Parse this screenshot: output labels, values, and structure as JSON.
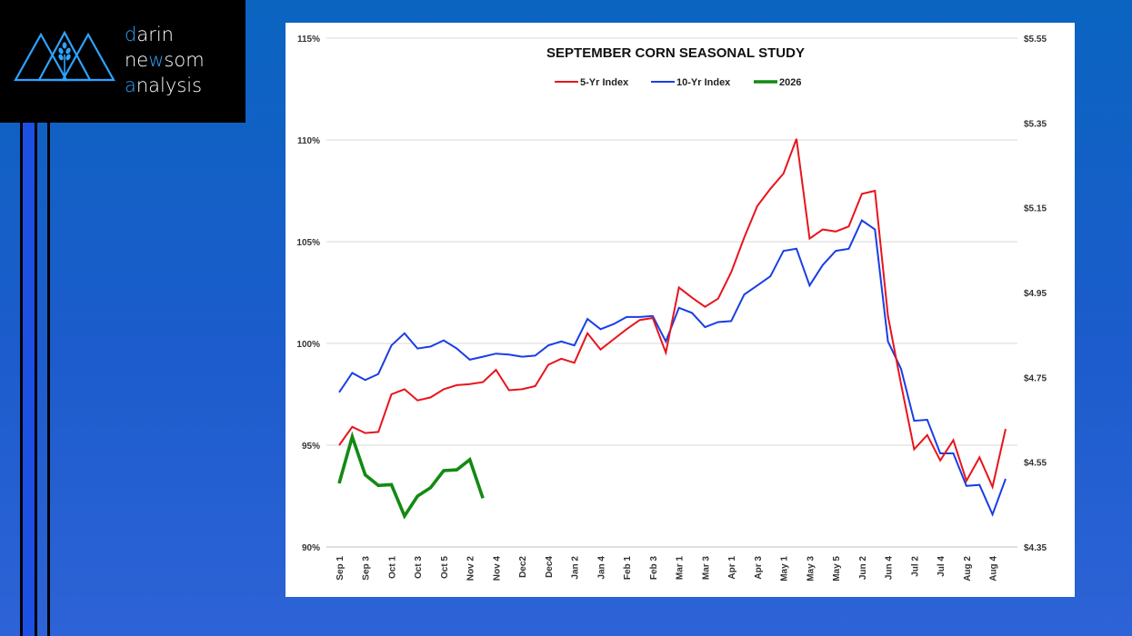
{
  "logo": {
    "line1_first": "d",
    "line1_rest": "arin",
    "line2_a": "ne",
    "line2_b": "w",
    "line2_c": "som",
    "line3_first": "a",
    "line3_rest": "nalysis"
  },
  "colors": {
    "five_yr": "#e8141c",
    "ten_yr": "#1a3ee6",
    "current": "#138a12",
    "logo_accent": "#2ea3ff"
  },
  "chart_data": {
    "type": "line",
    "title": "SEPTEMBER CORN SEASONAL STUDY",
    "legend_position": "top-center",
    "grid": true,
    "y_left": {
      "ticks": [
        "90%",
        "95%",
        "100%",
        "105%",
        "110%",
        "115%"
      ],
      "range": [
        90,
        115
      ]
    },
    "y_right": {
      "ticks": [
        "$4.35",
        "$4.55",
        "$4.75",
        "$4.95",
        "$5.15",
        "$5.35",
        "$5.55"
      ],
      "range": [
        4.35,
        5.55
      ]
    },
    "x_tick_labels": [
      "Sep 1",
      "Sep 3",
      "Oct 1",
      "Oct 3",
      "Oct 5",
      "Nov 2",
      "Nov 4",
      "Dec2",
      "Dec4",
      "Jan 2",
      "Jan 4",
      "Feb 1",
      "Feb 3",
      "Mar 1",
      "Mar 3",
      "Apr 1",
      "Apr 3",
      "May 1",
      "May 3",
      "May 5",
      "Jun 2",
      "Jun 4",
      "Jul 2",
      "Jul 4",
      "Aug 2",
      "Aug 4"
    ],
    "series": [
      {
        "name": "5-Yr Index",
        "axis": "left",
        "values": [
          95.0,
          95.9,
          95.6,
          95.65,
          97.5,
          97.75,
          97.2,
          97.35,
          97.75,
          97.95,
          98.0,
          98.1,
          98.7,
          97.7,
          97.75,
          97.9,
          98.95,
          99.25,
          99.05,
          100.5,
          99.7,
          100.2,
          100.7,
          101.15,
          101.25,
          99.55,
          102.75,
          102.25,
          101.8,
          102.2,
          103.5,
          105.2,
          106.75,
          107.6,
          108.35,
          110.05,
          105.15,
          105.6,
          105.5,
          105.75,
          107.35,
          107.5,
          101.35,
          98.0,
          94.8,
          95.5,
          94.25,
          95.25,
          93.25,
          94.4,
          92.95,
          95.8
        ]
      },
      {
        "name": "10-Yr Index",
        "axis": "left",
        "values": [
          97.6,
          98.55,
          98.2,
          98.5,
          99.9,
          100.5,
          99.75,
          99.85,
          100.15,
          99.75,
          99.2,
          99.35,
          99.5,
          99.45,
          99.35,
          99.4,
          99.9,
          100.1,
          99.9,
          101.2,
          100.7,
          100.95,
          101.3,
          101.3,
          101.35,
          100.1,
          101.75,
          101.5,
          100.8,
          101.05,
          101.1,
          102.4,
          102.85,
          103.3,
          104.55,
          104.65,
          102.85,
          103.85,
          104.55,
          104.65,
          106.05,
          105.6,
          100.1,
          98.75,
          96.2,
          96.25,
          94.6,
          94.6,
          93.0,
          93.05,
          91.6,
          93.35
        ]
      },
      {
        "name": "2026",
        "axis": "right",
        "x_start_index": 0,
        "values": [
          4.5,
          4.61,
          4.52,
          4.495,
          4.497,
          4.423,
          4.47,
          4.49,
          4.53,
          4.532,
          4.556,
          4.465
        ]
      }
    ]
  }
}
